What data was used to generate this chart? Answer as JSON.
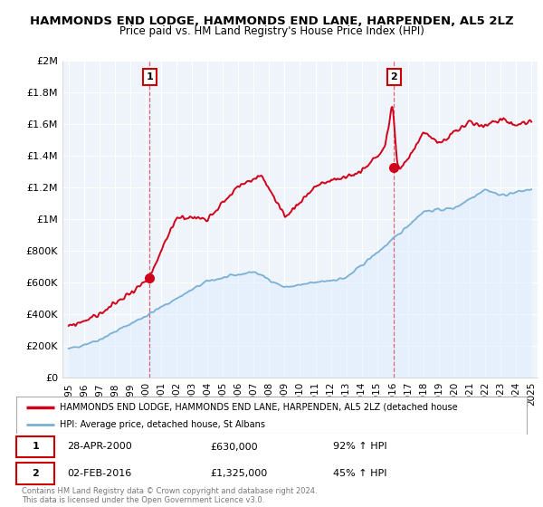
{
  "title": "HAMMONDS END LODGE, HAMMONDS END LANE, HARPENDEN, AL5 2LZ",
  "subtitle": "Price paid vs. HM Land Registry's House Price Index (HPI)",
  "ylim": [
    0,
    2000000
  ],
  "yticks": [
    0,
    200000,
    400000,
    600000,
    800000,
    1000000,
    1200000,
    1400000,
    1600000,
    1800000,
    2000000
  ],
  "ytick_labels": [
    "£0",
    "£200K",
    "£400K",
    "£600K",
    "£800K",
    "£1M",
    "£1.2M",
    "£1.4M",
    "£1.6M",
    "£1.8M",
    "£2M"
  ],
  "sale1_date": 2000.25,
  "sale1_price": 630000,
  "sale1_label": "1",
  "sale2_date": 2016.09,
  "sale2_price": 1325000,
  "sale2_label": "2",
  "red_color": "#d0021b",
  "blue_color": "#7ab0d4",
  "blue_fill_color": "#ddeeff",
  "dashed_color": "#d0021b",
  "background_color": "#ffffff",
  "chart_bg_color": "#eef4fa",
  "grid_color": "#ffffff",
  "legend_text_red": "HAMMONDS END LODGE, HAMMONDS END LANE, HARPENDEN, AL5 2LZ (detached house",
  "legend_text_blue": "HPI: Average price, detached house, St Albans",
  "annotation1_date": "28-APR-2000",
  "annotation1_price": "£630,000",
  "annotation1_hpi": "92% ↑ HPI",
  "annotation2_date": "02-FEB-2016",
  "annotation2_price": "£1,325,000",
  "annotation2_hpi": "45% ↑ HPI",
  "copyright_text": "Contains HM Land Registry data © Crown copyright and database right 2024.\nThis data is licensed under the Open Government Licence v3.0.",
  "xmin": 1994.6,
  "xmax": 2025.4,
  "xticks": [
    1995,
    1996,
    1997,
    1998,
    1999,
    2000,
    2001,
    2002,
    2003,
    2004,
    2005,
    2006,
    2007,
    2008,
    2009,
    2010,
    2011,
    2012,
    2013,
    2014,
    2015,
    2016,
    2017,
    2018,
    2019,
    2020,
    2021,
    2022,
    2023,
    2024,
    2025
  ]
}
